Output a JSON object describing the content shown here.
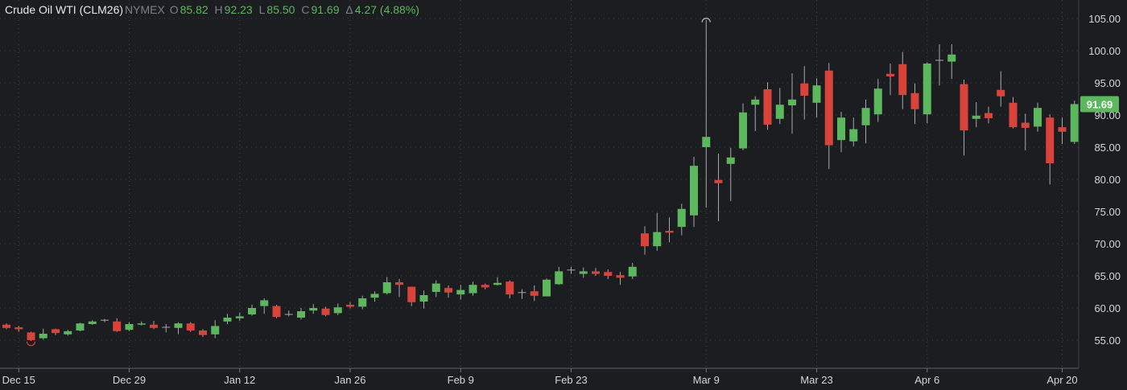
{
  "legend": {
    "symbol": "Crude Oil WTI (CLM26)",
    "exchange": "NYMEX",
    "open_label": "O",
    "open": "85.82",
    "high_label": "H",
    "high": "92.23",
    "low_label": "L",
    "low": "85.50",
    "close_label": "C",
    "close": "91.69",
    "change_label": "Δ",
    "change": "4.27 (4.88%)"
  },
  "last_price_label": "91.69",
  "colors": {
    "up": "#5cb85c",
    "down": "#d9433a",
    "background": "#1b1d21",
    "grid": "#3c3f45",
    "wick": "#a8a8a8"
  },
  "chart_data": {
    "type": "candlestick",
    "title": "Crude Oil WTI (CLM26)",
    "ylim": [
      52,
      106
    ],
    "y_ticks": [
      "55.00",
      "60.00",
      "65.00",
      "70.00",
      "75.00",
      "80.00",
      "85.00",
      "90.00",
      "95.00",
      "100.00",
      "105.00"
    ],
    "x_ticks": [
      {
        "label": "Dec 15",
        "index": 1
      },
      {
        "label": "Dec 29",
        "index": 10
      },
      {
        "label": "Jan 12",
        "index": 19
      },
      {
        "label": "Jan 26",
        "index": 28
      },
      {
        "label": "Feb 9",
        "index": 37
      },
      {
        "label": "Feb 23",
        "index": 46
      },
      {
        "label": "Mar 9",
        "index": 57
      },
      {
        "label": "Mar 23",
        "index": 66
      },
      {
        "label": "Apr 6",
        "index": 75
      },
      {
        "label": "Apr 20",
        "index": 86
      }
    ],
    "grid": true,
    "ohlc": [
      [
        57.4,
        57.6,
        56.7,
        56.9
      ],
      [
        57.0,
        57.2,
        56.3,
        56.7
      ],
      [
        56.2,
        56.3,
        54.9,
        55.0
      ],
      [
        55.3,
        56.8,
        55.1,
        56.0
      ],
      [
        56.7,
        56.8,
        55.8,
        56.1
      ],
      [
        55.9,
        56.6,
        55.7,
        56.4
      ],
      [
        56.5,
        57.7,
        56.4,
        57.6
      ],
      [
        57.5,
        58.1,
        57.4,
        57.9
      ],
      [
        58.1,
        58.3,
        57.8,
        58.1
      ],
      [
        57.9,
        58.4,
        56.3,
        56.4
      ],
      [
        56.6,
        57.8,
        56.4,
        57.5
      ],
      [
        57.5,
        57.9,
        57.3,
        57.6
      ],
      [
        57.4,
        58.0,
        56.7,
        56.9
      ],
      [
        57.0,
        57.5,
        56.2,
        57.0
      ],
      [
        56.9,
        57.8,
        55.9,
        57.6
      ],
      [
        57.6,
        57.8,
        56.3,
        56.5
      ],
      [
        56.5,
        56.7,
        55.5,
        55.8
      ],
      [
        55.9,
        58.1,
        55.3,
        57.2
      ],
      [
        57.9,
        59.1,
        57.5,
        58.5
      ],
      [
        58.4,
        59.3,
        58.0,
        58.7
      ],
      [
        59.0,
        60.5,
        58.8,
        60.0
      ],
      [
        60.3,
        61.5,
        59.1,
        61.2
      ],
      [
        60.3,
        60.5,
        58.4,
        58.6
      ],
      [
        59.0,
        59.6,
        58.7,
        59.0
      ],
      [
        58.5,
        60.0,
        58.2,
        59.5
      ],
      [
        59.6,
        60.6,
        59.1,
        60.0
      ],
      [
        59.9,
        60.2,
        58.7,
        58.9
      ],
      [
        59.2,
        60.7,
        58.9,
        60.1
      ],
      [
        60.5,
        60.9,
        59.9,
        60.2
      ],
      [
        60.2,
        61.9,
        59.8,
        61.5
      ],
      [
        61.6,
        62.6,
        61.0,
        62.2
      ],
      [
        62.3,
        64.8,
        62.1,
        64.0
      ],
      [
        64.0,
        64.5,
        61.7,
        63.6
      ],
      [
        63.3,
        63.3,
        60.3,
        60.9
      ],
      [
        61.0,
        62.7,
        59.9,
        62.0
      ],
      [
        62.5,
        64.3,
        61.7,
        63.8
      ],
      [
        63.1,
        63.5,
        61.6,
        62.4
      ],
      [
        62.1,
        63.6,
        61.3,
        62.8
      ],
      [
        62.3,
        64.1,
        61.9,
        63.6
      ],
      [
        63.6,
        63.8,
        62.9,
        63.2
      ],
      [
        63.6,
        64.8,
        63.5,
        63.9
      ],
      [
        64.1,
        64.3,
        61.5,
        62.1
      ],
      [
        62.4,
        62.9,
        61.4,
        62.4
      ],
      [
        62.6,
        63.5,
        61.1,
        61.9
      ],
      [
        61.8,
        64.6,
        61.8,
        64.4
      ],
      [
        63.7,
        66.4,
        63.6,
        65.7
      ],
      [
        65.9,
        66.4,
        65.3,
        65.9
      ],
      [
        65.3,
        66.3,
        64.7,
        65.7
      ],
      [
        65.7,
        66.2,
        65.0,
        65.3
      ],
      [
        65.6,
        66.0,
        64.5,
        65.0
      ],
      [
        65.1,
        65.6,
        63.6,
        64.7
      ],
      [
        64.9,
        67.0,
        64.5,
        66.4
      ],
      [
        71.6,
        72.7,
        68.3,
        69.6
      ],
      [
        69.6,
        74.8,
        68.9,
        71.8
      ],
      [
        72.0,
        74.1,
        70.2,
        71.7
      ],
      [
        72.6,
        76.2,
        71.3,
        75.4
      ],
      [
        74.4,
        83.5,
        72.6,
        82.1
      ],
      [
        85.0,
        104.8,
        75.6,
        86.6
      ],
      [
        79.9,
        84.0,
        73.5,
        79.4
      ],
      [
        82.4,
        84.9,
        76.6,
        83.4
      ],
      [
        84.8,
        91.8,
        84.5,
        90.4
      ],
      [
        91.6,
        92.9,
        87.5,
        92.4
      ],
      [
        94.0,
        95.1,
        87.7,
        88.5
      ],
      [
        89.4,
        94.2,
        88.6,
        91.6
      ],
      [
        91.5,
        96.5,
        87.1,
        92.4
      ],
      [
        94.9,
        97.6,
        89.3,
        93.0
      ],
      [
        91.9,
        95.7,
        89.6,
        94.6
      ],
      [
        96.9,
        98.1,
        81.6,
        85.3
      ],
      [
        86.1,
        90.5,
        84.2,
        89.6
      ],
      [
        85.9,
        89.6,
        85.1,
        87.8
      ],
      [
        88.4,
        92.4,
        85.6,
        91.1
      ],
      [
        90.1,
        95.6,
        88.9,
        94.1
      ],
      [
        96.4,
        98.0,
        93.1,
        96.0
      ],
      [
        97.9,
        99.8,
        90.9,
        93.1
      ],
      [
        93.4,
        94.9,
        88.6,
        90.9
      ],
      [
        90.1,
        98.2,
        88.7,
        98.0
      ],
      [
        98.5,
        101.0,
        94.6,
        98.5
      ],
      [
        98.3,
        101.0,
        95.6,
        99.4
      ],
      [
        94.8,
        95.5,
        83.7,
        87.6
      ],
      [
        89.4,
        92.0,
        88.1,
        89.9
      ],
      [
        90.3,
        91.3,
        88.7,
        89.5
      ],
      [
        93.9,
        96.8,
        91.3,
        92.9
      ],
      [
        91.9,
        92.8,
        87.9,
        88.1
      ],
      [
        88.8,
        90.2,
        84.5,
        88.0
      ],
      [
        88.2,
        91.9,
        87.4,
        91.1
      ],
      [
        89.6,
        90.1,
        79.2,
        82.5
      ],
      [
        88.1,
        89.6,
        85.5,
        87.4
      ],
      [
        85.82,
        92.23,
        85.5,
        91.69
      ]
    ],
    "markers": [
      {
        "type": "high",
        "index": 57
      },
      {
        "type": "low",
        "index": 2
      }
    ]
  }
}
